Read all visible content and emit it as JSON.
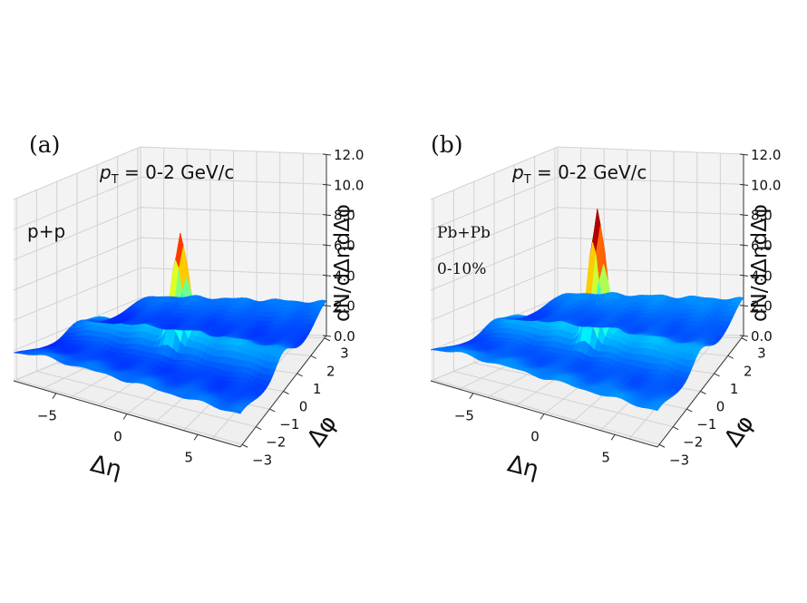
{
  "chart_data": [
    {
      "type": "surface3d",
      "panel_label": "(a)",
      "pt_label": {
        "symbol": "p",
        "subscript": "T",
        "text": " = 0-2 GeV/c"
      },
      "annotations": [
        "p+p"
      ],
      "xlabel": "Δη",
      "ylabel": "Δφ",
      "zlabel": "dN/dΔηdΔφ",
      "x_ticks": [
        "−5",
        "0",
        "5"
      ],
      "y_ticks": [
        "−3",
        "−2",
        "−1",
        "0",
        "1",
        "2",
        "3"
      ],
      "z_ticks": [
        "0.0",
        "2.0",
        "4.0",
        "6.0",
        "8.0",
        "10.0",
        "12.0"
      ],
      "xlim": [
        -8,
        8
      ],
      "ylim": [
        -3.14,
        3.14
      ],
      "zlim": [
        0,
        12
      ],
      "grid": true,
      "colormap": "jet",
      "surface": {
        "baseline": 1.6,
        "ridge_height_at_dphi0": 1.3,
        "peak_height": 9.2,
        "peak_at": [
          0,
          0
        ]
      }
    },
    {
      "type": "surface3d",
      "panel_label": "(b)",
      "pt_label": {
        "symbol": "p",
        "subscript": "T",
        "text": " = 0-2 GeV/c"
      },
      "annotations": [
        "Pb+Pb",
        "0-10%"
      ],
      "xlabel": "Δη",
      "ylabel": "Δφ",
      "zlabel": "dN/dΔηdΔφ",
      "x_ticks": [
        "−5",
        "0",
        "5"
      ],
      "y_ticks": [
        "−3",
        "−2",
        "−1",
        "0",
        "1",
        "2",
        "3"
      ],
      "z_ticks": [
        "0.0",
        "2.0",
        "4.0",
        "6.0",
        "8.0",
        "10.0",
        "12.0"
      ],
      "xlim": [
        -8,
        8
      ],
      "ylim": [
        -3.14,
        3.14
      ],
      "zlim": [
        0,
        12
      ],
      "grid": true,
      "colormap": "jet",
      "surface": {
        "baseline": 1.8,
        "ridge_height_at_dphi0": 1.2,
        "peak_height": 10.8,
        "peak_at": [
          0,
          0
        ]
      }
    }
  ]
}
